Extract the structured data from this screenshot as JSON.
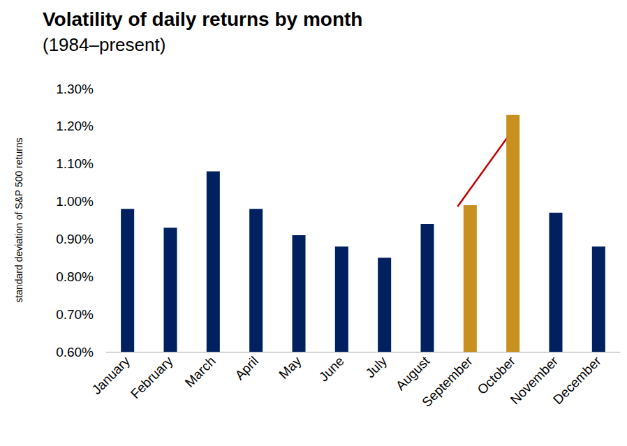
{
  "chart_data": {
    "type": "bar",
    "title": "Volatility of daily returns by month",
    "subtitle": "(1984–present)",
    "y_label": "standard deviation of S&P 500 returns",
    "categories": [
      "January",
      "February",
      "March",
      "April",
      "May",
      "June",
      "July",
      "August",
      "September",
      "October",
      "November",
      "December"
    ],
    "values": [
      0.98,
      0.93,
      1.08,
      0.98,
      0.91,
      0.88,
      0.85,
      0.94,
      0.99,
      1.23,
      0.97,
      0.88
    ],
    "colors": [
      "#002060",
      "#002060",
      "#002060",
      "#002060",
      "#002060",
      "#002060",
      "#002060",
      "#002060",
      "#C8901E",
      "#C8901E",
      "#002060",
      "#002060"
    ],
    "ylim": [
      0.6,
      1.3
    ],
    "yticks": [
      {
        "value": 0.6,
        "label": "0.60%"
      },
      {
        "value": 0.7,
        "label": "0.70%"
      },
      {
        "value": 0.8,
        "label": "0.80%"
      },
      {
        "value": 0.9,
        "label": "0.90%"
      },
      {
        "value": 1.0,
        "label": "1.00%"
      },
      {
        "value": 1.1,
        "label": "1.10%"
      },
      {
        "value": 1.2,
        "label": "1.20%"
      },
      {
        "value": 1.3,
        "label": "1.30%"
      }
    ],
    "grid": false
  }
}
